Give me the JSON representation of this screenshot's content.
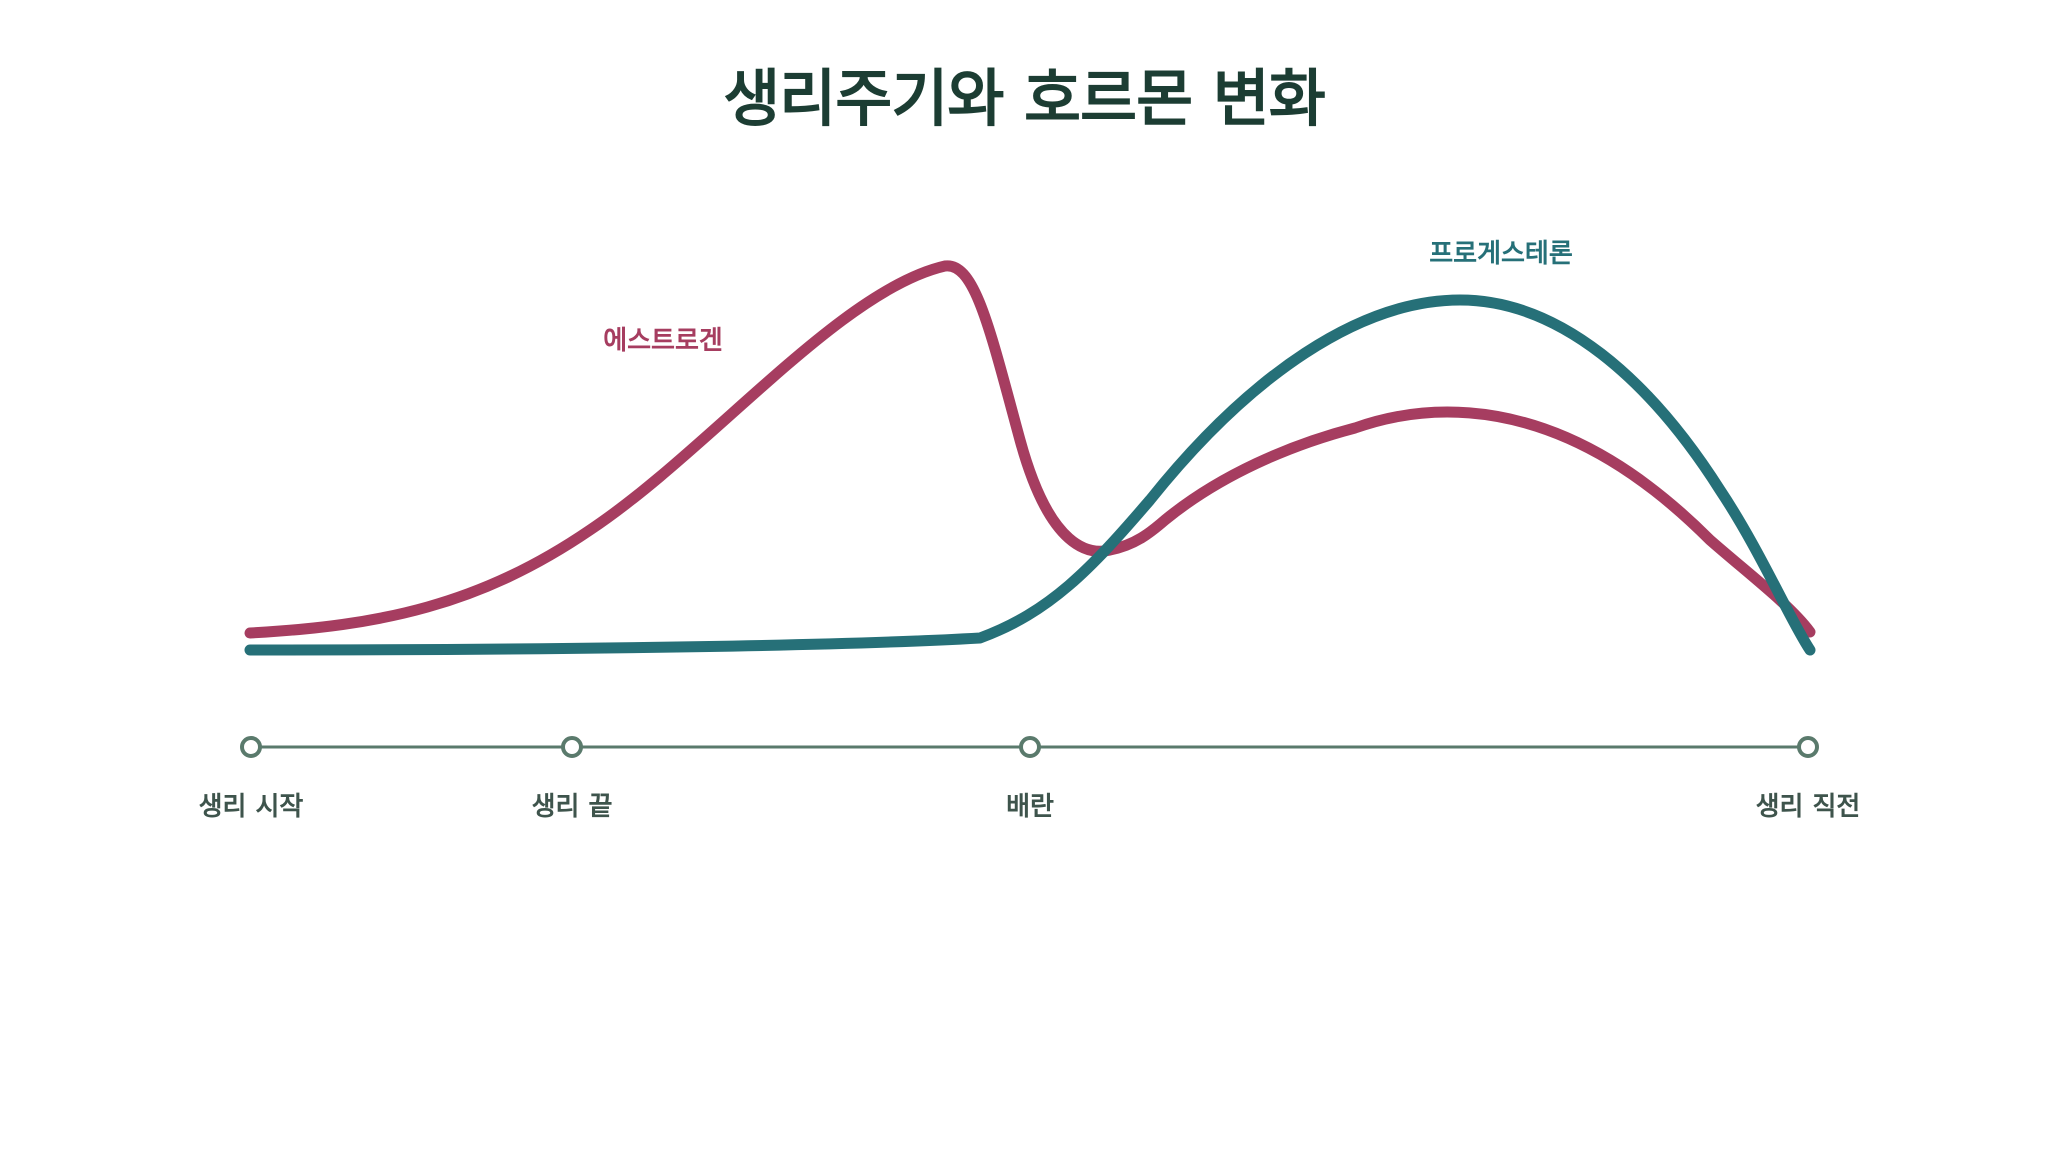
{
  "title": "생리주기와 호르몬 변화",
  "colors": {
    "title": "#1c3d33",
    "estrogen": "#a63d60",
    "progesterone": "#267078",
    "timeline": "#5a7a6c"
  },
  "series": [
    {
      "id": "estrogen",
      "label": "에스트로겐"
    },
    {
      "id": "progesterone",
      "label": "프로게스테론"
    }
  ],
  "timeline": {
    "milestones": [
      {
        "label": "생리 시작"
      },
      {
        "label": "생리 끝"
      },
      {
        "label": "배란"
      },
      {
        "label": "생리 직전"
      }
    ]
  }
}
